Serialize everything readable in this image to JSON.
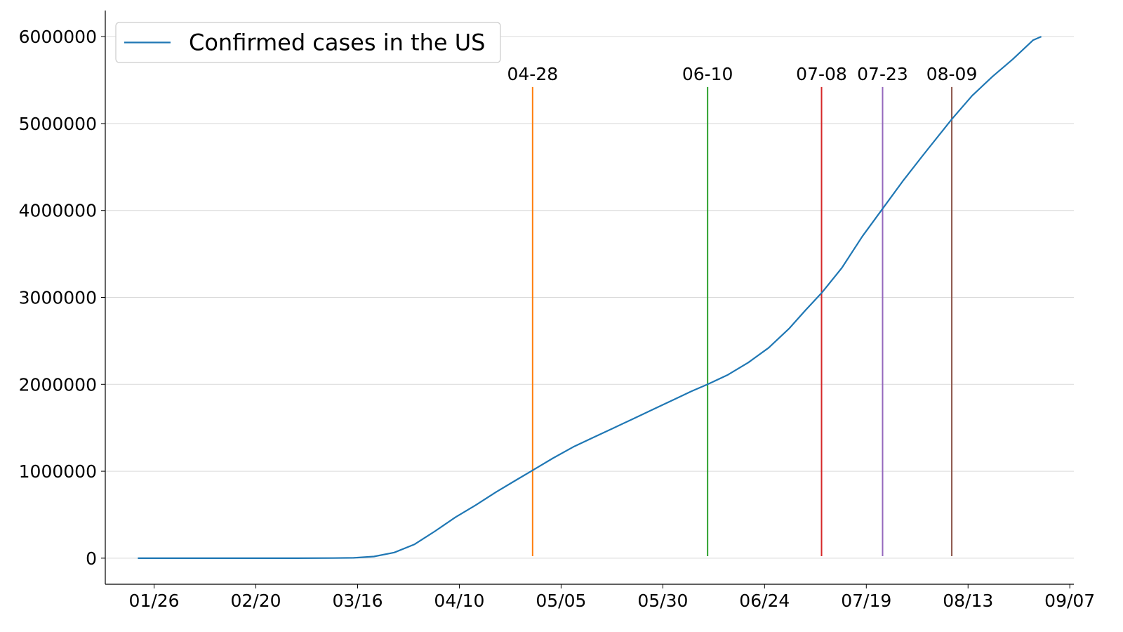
{
  "chart_data": {
    "type": "line",
    "title": "",
    "xlabel": "",
    "ylabel": "",
    "x_start": "2020-01-22",
    "xlim": [
      "2020-01-14",
      "2020-09-08"
    ],
    "ylim": [
      -300000,
      6300000
    ],
    "grid": {
      "y": true,
      "x": false
    },
    "legend": {
      "position": "top-left",
      "entries": [
        "Confirmed cases in the US"
      ]
    },
    "xticks": [
      {
        "date": "2020-01-26",
        "label": "01/26"
      },
      {
        "date": "2020-02-20",
        "label": "02/20"
      },
      {
        "date": "2020-03-16",
        "label": "03/16"
      },
      {
        "date": "2020-04-10",
        "label": "04/10"
      },
      {
        "date": "2020-05-05",
        "label": "05/05"
      },
      {
        "date": "2020-05-30",
        "label": "05/30"
      },
      {
        "date": "2020-06-24",
        "label": "06/24"
      },
      {
        "date": "2020-07-19",
        "label": "07/19"
      },
      {
        "date": "2020-08-13",
        "label": "08/13"
      },
      {
        "date": "2020-09-07",
        "label": "09/07"
      }
    ],
    "yticks": [
      {
        "value": 0,
        "label": "0"
      },
      {
        "value": 1000000,
        "label": "1000000"
      },
      {
        "value": 2000000,
        "label": "2000000"
      },
      {
        "value": 3000000,
        "label": "3000000"
      },
      {
        "value": 4000000,
        "label": "4000000"
      },
      {
        "value": 5000000,
        "label": "5000000"
      },
      {
        "value": 6000000,
        "label": "6000000"
      }
    ],
    "series": [
      {
        "name": "Confirmed cases in the US",
        "color": "#1f77b4",
        "points": [
          [
            "2020-01-22",
            0
          ],
          [
            "2020-02-01",
            8
          ],
          [
            "2020-02-15",
            15
          ],
          [
            "2020-03-01",
            75
          ],
          [
            "2020-03-10",
            1000
          ],
          [
            "2020-03-15",
            3500
          ],
          [
            "2020-03-20",
            19000
          ],
          [
            "2020-03-25",
            65000
          ],
          [
            "2020-03-30",
            160000
          ],
          [
            "2020-04-04",
            310000
          ],
          [
            "2020-04-09",
            470000
          ],
          [
            "2020-04-14",
            610000
          ],
          [
            "2020-04-19",
            760000
          ],
          [
            "2020-04-24",
            900000
          ],
          [
            "2020-04-28",
            1010000
          ],
          [
            "2020-05-03",
            1150000
          ],
          [
            "2020-05-08",
            1280000
          ],
          [
            "2020-05-13",
            1390000
          ],
          [
            "2020-05-18",
            1500000
          ],
          [
            "2020-05-23",
            1610000
          ],
          [
            "2020-05-28",
            1720000
          ],
          [
            "2020-06-02",
            1830000
          ],
          [
            "2020-06-06",
            1920000
          ],
          [
            "2020-06-10",
            2000000
          ],
          [
            "2020-06-15",
            2110000
          ],
          [
            "2020-06-20",
            2250000
          ],
          [
            "2020-06-25",
            2420000
          ],
          [
            "2020-06-30",
            2640000
          ],
          [
            "2020-07-04",
            2850000
          ],
          [
            "2020-07-08",
            3050000
          ],
          [
            "2020-07-13",
            3340000
          ],
          [
            "2020-07-18",
            3700000
          ],
          [
            "2020-07-23",
            4020000
          ],
          [
            "2020-07-28",
            4340000
          ],
          [
            "2020-08-02",
            4640000
          ],
          [
            "2020-08-09",
            5050000
          ],
          [
            "2020-08-14",
            5320000
          ],
          [
            "2020-08-19",
            5540000
          ],
          [
            "2020-08-24",
            5740000
          ],
          [
            "2020-08-29",
            5960000
          ],
          [
            "2020-08-31",
            6000000
          ]
        ]
      }
    ],
    "event_lines": [
      {
        "date": "2020-04-28",
        "label": "04-28",
        "color": "#ff7f0e"
      },
      {
        "date": "2020-06-10",
        "label": "06-10",
        "color": "#2ca02c"
      },
      {
        "date": "2020-07-08",
        "label": "07-08",
        "color": "#d62728"
      },
      {
        "date": "2020-07-23",
        "label": "07-23",
        "color": "#9467bd"
      },
      {
        "date": "2020-08-09",
        "label": "08-09",
        "color": "#8c564b"
      }
    ]
  }
}
